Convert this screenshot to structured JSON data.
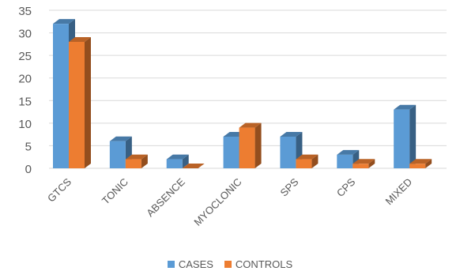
{
  "chart_data": {
    "type": "bar",
    "categories": [
      "GTCS",
      "TONIC",
      "ABSENCE",
      "MYOCLONIC",
      "SPS",
      "CPS",
      "MIXED"
    ],
    "series": [
      {
        "name": "CASES",
        "values": [
          32,
          6,
          2,
          7,
          7,
          3,
          13
        ],
        "color": "#5b9bd5"
      },
      {
        "name": "CONTROLS",
        "values": [
          28,
          2,
          0,
          9,
          2,
          1,
          1
        ],
        "color": "#ed7d31"
      }
    ],
    "ylim": [
      0,
      35
    ],
    "yticks": [
      0,
      5,
      10,
      15,
      20,
      25,
      30,
      35
    ],
    "grid": true,
    "three_d": true,
    "legend_position": "bottom"
  }
}
